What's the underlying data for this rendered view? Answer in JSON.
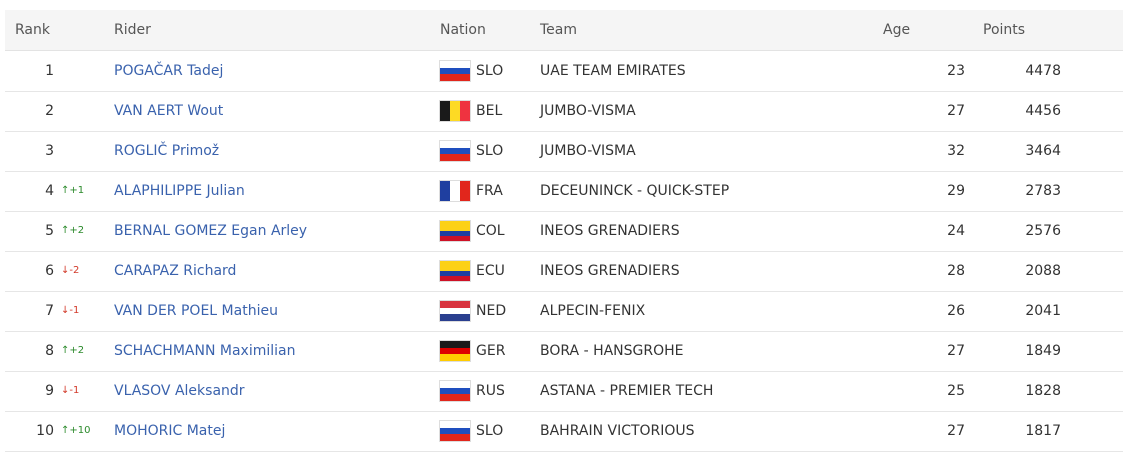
{
  "table": {
    "headers": {
      "rank": "Rank",
      "rider": "Rider",
      "nation": "Nation",
      "team": "Team",
      "age": "Age",
      "points": "Points"
    },
    "rows": [
      {
        "rank": 1,
        "rider": "POGAČAR Tadej",
        "nation": "SLO",
        "flag": {
          "dir": "h",
          "colors": [
            "#ffffff",
            "#1f4fbf",
            "#e1261c"
          ]
        },
        "team": "UAE TEAM EMIRATES",
        "age": 23,
        "points": 4478
      },
      {
        "rank": 2,
        "rider": "VAN AERT Wout",
        "nation": "BEL",
        "flag": {
          "dir": "v",
          "colors": [
            "#1a1a1a",
            "#fdda24",
            "#ef3340"
          ]
        },
        "team": "JUMBO-VISMA",
        "age": 27,
        "points": 4456
      },
      {
        "rank": 3,
        "rider": "ROGLIČ Primož",
        "nation": "SLO",
        "flag": {
          "dir": "h",
          "colors": [
            "#ffffff",
            "#1f4fbf",
            "#e1261c"
          ]
        },
        "team": "JUMBO-VISMA",
        "age": 32,
        "points": 3464
      },
      {
        "rank": 4,
        "change": "+1",
        "rider": "ALAPHILIPPE Julian",
        "nation": "FRA",
        "flag": {
          "dir": "v",
          "colors": [
            "#1f3fa0",
            "#ffffff",
            "#e1261c"
          ]
        },
        "team": "DECEUNINCK - QUICK-STEP",
        "age": 29,
        "points": 2783
      },
      {
        "rank": 5,
        "change": "+2",
        "rider": "BERNAL GOMEZ Egan Arley",
        "nation": "COL",
        "flag": {
          "dir": "h",
          "colors": [
            "#fcd116",
            "#fcd116",
            "#1f3fa0",
            "#ce1126"
          ]
        },
        "team": "INEOS GRENADIERS",
        "age": 24,
        "points": 2576
      },
      {
        "rank": 6,
        "change": "-2",
        "rider": "CARAPAZ Richard",
        "nation": "ECU",
        "flag": {
          "dir": "h",
          "colors": [
            "#fcd116",
            "#fcd116",
            "#1f3fa0",
            "#ce1126"
          ]
        },
        "team": "INEOS GRENADIERS",
        "age": 28,
        "points": 2088
      },
      {
        "rank": 7,
        "change": "-1",
        "rider": "VAN DER POEL Mathieu",
        "nation": "NED",
        "flag": {
          "dir": "h",
          "colors": [
            "#d8333f",
            "#ffffff",
            "#2a3f8f"
          ]
        },
        "team": "ALPECIN-FENIX",
        "age": 26,
        "points": 2041
      },
      {
        "rank": 8,
        "change": "+2",
        "rider": "SCHACHMANN Maximilian",
        "nation": "GER",
        "flag": {
          "dir": "h",
          "colors": [
            "#1a1a1a",
            "#dd0000",
            "#ffcc00"
          ]
        },
        "team": "BORA - HANSGROHE",
        "age": 27,
        "points": 1849
      },
      {
        "rank": 9,
        "change": "-1",
        "rider": "VLASOV Aleksandr",
        "nation": "RUS",
        "flag": {
          "dir": "h",
          "colors": [
            "#ffffff",
            "#1f4fbf",
            "#e1261c"
          ]
        },
        "team": "ASTANA - PREMIER TECH",
        "age": 25,
        "points": 1828
      },
      {
        "rank": 10,
        "change": "+10",
        "rider": "MOHORIC Matej",
        "nation": "SLO",
        "flag": {
          "dir": "h",
          "colors": [
            "#ffffff",
            "#1f4fbf",
            "#e1261c"
          ]
        },
        "team": "BAHRAIN VICTORIOUS",
        "age": 27,
        "points": 1817
      }
    ]
  }
}
